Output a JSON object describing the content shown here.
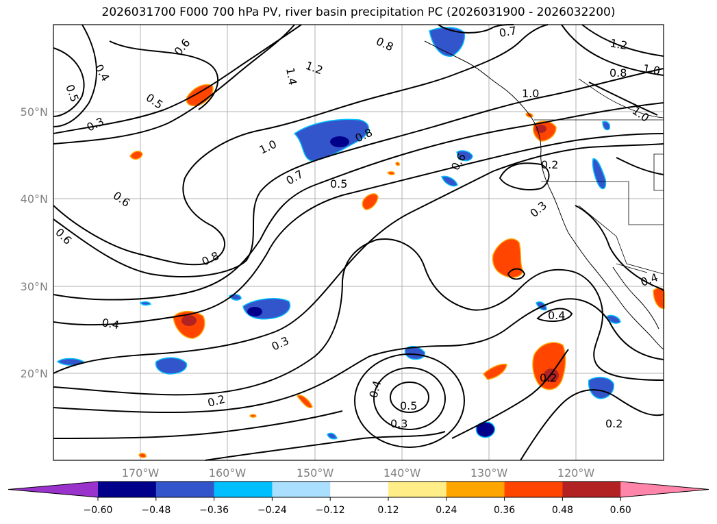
{
  "title": "2026031700 F000 700 hPa PV, river basin precipitation PC (2026031900 - 2026032200)",
  "map": {
    "lat_labels": [
      "50°N",
      "40°N",
      "30°N",
      "20°N"
    ],
    "lon_labels": [
      "170°W",
      "160°W",
      "150°W",
      "140°W",
      "130°W",
      "120°W"
    ]
  },
  "contour_labels": [
    "0.6",
    "0.7",
    "0.8",
    "1.2",
    "1.4",
    "0.4",
    "0.5",
    "0.3",
    "1.0",
    "0.6",
    "0.8",
    "1.0",
    "0.7",
    "0.5",
    "0.8",
    "0.2",
    "0.3",
    "0.6",
    "0.6",
    "0.4",
    "0.3",
    "0.4",
    "0.5",
    "0.3",
    "0.2",
    "0.4",
    "0.2",
    "0.2",
    "0.4",
    "1.0",
    "1.2",
    "0.8",
    "1.0",
    "0.5"
  ],
  "colorbar": {
    "ticks": [
      "−0.60",
      "−0.48",
      "−0.36",
      "−0.24",
      "−0.12",
      "0.12",
      "0.24",
      "0.36",
      "0.48",
      "0.60"
    ],
    "colors": [
      "#9933cc",
      "#00008b",
      "#3355cc",
      "#00bfff",
      "#aadfff",
      "#ffffff",
      "#ffee88",
      "#ffa500",
      "#ff4500",
      "#b22222",
      "#ff85aa"
    ]
  }
}
